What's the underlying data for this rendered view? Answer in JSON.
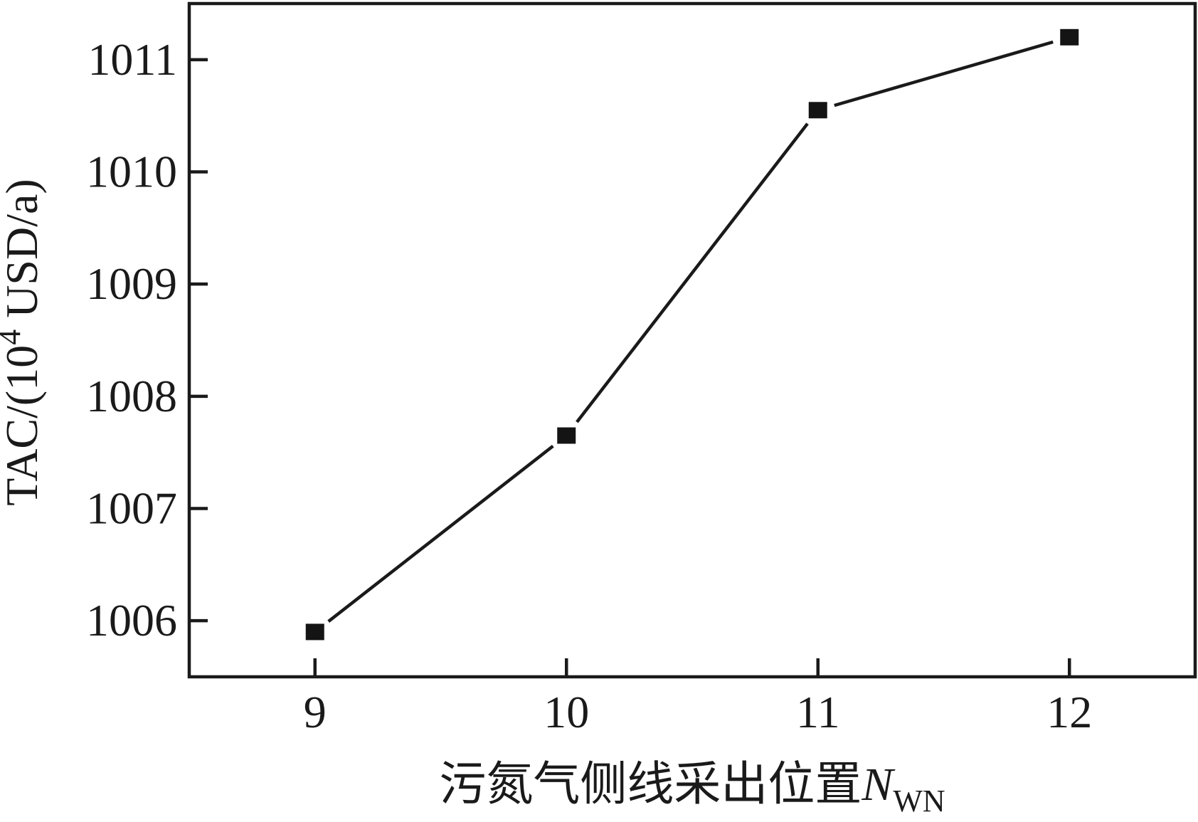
{
  "figure": {
    "background_color": "#ffffff",
    "frame_color": "#1a1a1a"
  },
  "chart_data": {
    "type": "line",
    "title": "",
    "series": [
      {
        "name": "TAC",
        "x": [
          9,
          10,
          11,
          12
        ],
        "y": [
          1005.9,
          1007.65,
          1010.55,
          1011.2
        ],
        "marker": "filled-square",
        "line_color": "#1a1a1a",
        "marker_color": "#141414"
      }
    ],
    "xlabel": "污氮气侧线采出位置N_WN",
    "xlabel_parts": {
      "text": "污氮气侧线采出位置",
      "var": "N",
      "sub": "WN"
    },
    "ylabel": "TAC/(10^4 USD/a)",
    "ylabel_parts": {
      "prefix": "TAC/(10",
      "sup": "4",
      "suffix": " USD/a)"
    },
    "x_tick_values": [
      9,
      10,
      11,
      12
    ],
    "x_tick_labels": [
      "9",
      "10",
      "11",
      "12"
    ],
    "y_tick_values": [
      1006,
      1007,
      1008,
      1009,
      1010,
      1011
    ],
    "y_tick_labels": [
      "1006",
      "1007",
      "1008",
      "1009",
      "1010",
      "1011"
    ],
    "xlim": [
      8.5,
      12.5
    ],
    "ylim": [
      1005.5,
      1011.5
    ],
    "grid": false,
    "legend_position": "none",
    "tick_direction": "in"
  }
}
